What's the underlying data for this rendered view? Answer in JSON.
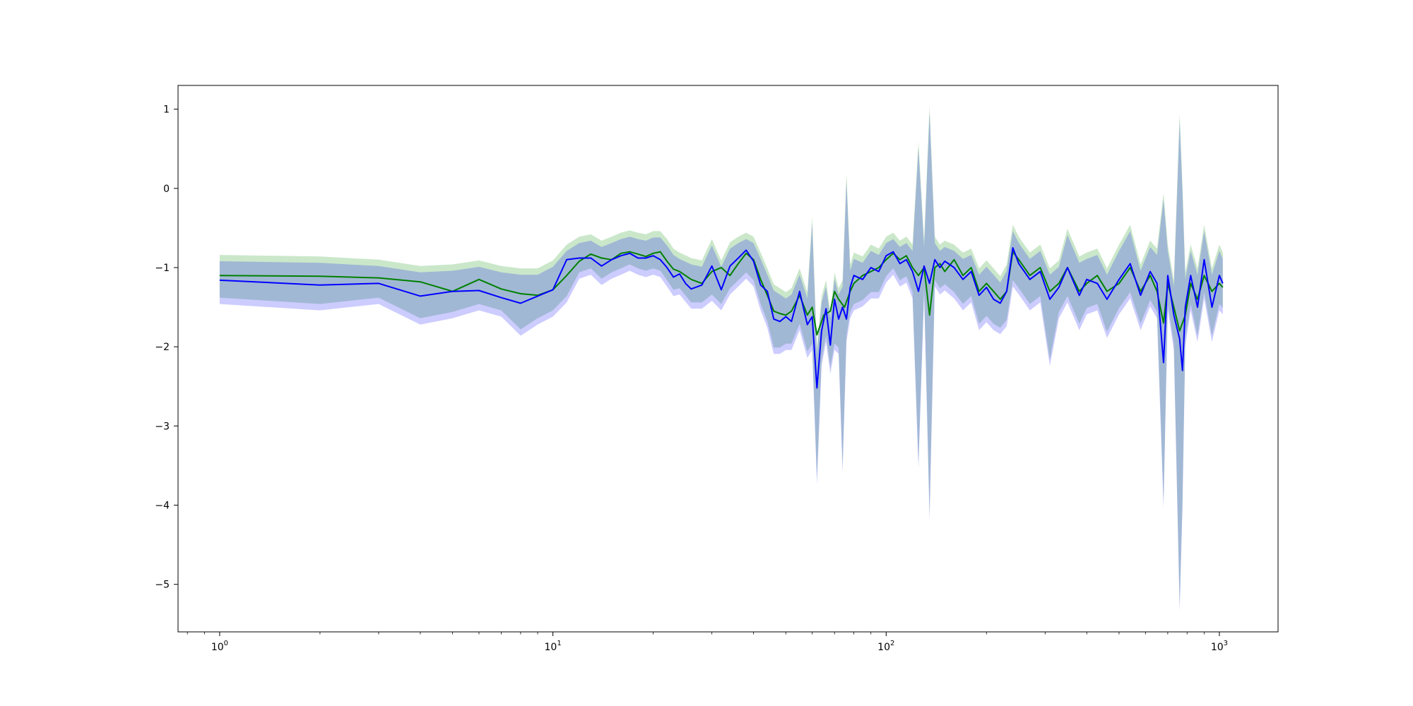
{
  "chart_data": {
    "type": "line",
    "title": "",
    "xlabel": "",
    "ylabel": "",
    "x_scale": "log",
    "xlim": [
      0.75,
      1500
    ],
    "ylim": [
      -5.6,
      1.3
    ],
    "grid": false,
    "legend": "none",
    "x_ticks": [
      {
        "value": 1,
        "label": "10^0"
      },
      {
        "value": 10,
        "label": "10^1"
      },
      {
        "value": 100,
        "label": "10^2"
      },
      {
        "value": 1000,
        "label": "10^3"
      }
    ],
    "y_ticks": [
      1,
      0,
      -1,
      -2,
      -3,
      -4,
      -5
    ],
    "y_tick_labels": [
      "1",
      "0",
      "−1",
      "−2",
      "−3",
      "−4",
      "−5"
    ],
    "series": [
      {
        "color": "#008000",
        "band_color": "#2ca02c",
        "band_opacity": 0.25,
        "points": [
          [
            1,
            -1.1
          ],
          [
            2,
            -1.11
          ],
          [
            3,
            -1.13
          ],
          [
            4,
            -1.18
          ],
          [
            5,
            -1.3
          ],
          [
            6,
            -1.15
          ],
          [
            7,
            -1.27
          ],
          [
            8,
            -1.33
          ],
          [
            9,
            -1.35
          ],
          [
            10,
            -1.28
          ],
          [
            11,
            -1.1
          ],
          [
            12,
            -0.92
          ],
          [
            13,
            -0.83
          ],
          [
            14,
            -0.88
          ],
          [
            15,
            -0.9
          ],
          [
            16,
            -0.82
          ],
          [
            17,
            -0.8
          ],
          [
            18,
            -0.83
          ],
          [
            19,
            -0.86
          ],
          [
            20,
            -0.82
          ],
          [
            21,
            -0.8
          ],
          [
            22,
            -0.92
          ],
          [
            23,
            -1.02
          ],
          [
            24,
            -1.05
          ],
          [
            26,
            -1.15
          ],
          [
            28,
            -1.2
          ],
          [
            30,
            -1.05
          ],
          [
            32,
            -1.0
          ],
          [
            34,
            -1.1
          ],
          [
            36,
            -0.95
          ],
          [
            38,
            -0.82
          ],
          [
            40,
            -0.9
          ],
          [
            42,
            -1.15
          ],
          [
            44,
            -1.35
          ],
          [
            46,
            -1.55
          ],
          [
            48,
            -1.58
          ],
          [
            50,
            -1.6
          ],
          [
            52,
            -1.55
          ],
          [
            55,
            -1.35
          ],
          [
            58,
            -1.6
          ],
          [
            60,
            -1.5
          ],
          [
            62,
            -1.85
          ],
          [
            65,
            -1.6
          ],
          [
            68,
            -1.55
          ],
          [
            70,
            -1.3
          ],
          [
            72,
            -1.4
          ],
          [
            75,
            -1.5
          ],
          [
            78,
            -1.3
          ],
          [
            80,
            -1.2
          ],
          [
            85,
            -1.1
          ],
          [
            90,
            -1.05
          ],
          [
            95,
            -1.0
          ],
          [
            100,
            -0.9
          ],
          [
            105,
            -0.82
          ],
          [
            110,
            -0.9
          ],
          [
            115,
            -0.85
          ],
          [
            120,
            -1.0
          ],
          [
            125,
            -1.1
          ],
          [
            130,
            -1.0
          ],
          [
            135,
            -1.6
          ],
          [
            140,
            -1.0
          ],
          [
            145,
            -0.95
          ],
          [
            150,
            -1.05
          ],
          [
            160,
            -0.9
          ],
          [
            170,
            -1.1
          ],
          [
            180,
            -1.0
          ],
          [
            190,
            -1.3
          ],
          [
            200,
            -1.2
          ],
          [
            210,
            -1.3
          ],
          [
            220,
            -1.4
          ],
          [
            230,
            -1.3
          ],
          [
            240,
            -0.8
          ],
          [
            250,
            -0.9
          ],
          [
            270,
            -1.1
          ],
          [
            290,
            -1.0
          ],
          [
            310,
            -1.3
          ],
          [
            330,
            -1.2
          ],
          [
            350,
            -1.0
          ],
          [
            380,
            -1.3
          ],
          [
            400,
            -1.2
          ],
          [
            430,
            -1.1
          ],
          [
            460,
            -1.3
          ],
          [
            500,
            -1.2
          ],
          [
            540,
            -1.0
          ],
          [
            580,
            -1.3
          ],
          [
            620,
            -1.1
          ],
          [
            650,
            -1.3
          ],
          [
            680,
            -1.7
          ],
          [
            700,
            -1.2
          ],
          [
            730,
            -1.5
          ],
          [
            760,
            -1.8
          ],
          [
            790,
            -1.6
          ],
          [
            820,
            -1.2
          ],
          [
            860,
            -1.4
          ],
          [
            900,
            -1.1
          ],
          [
            950,
            -1.3
          ],
          [
            1000,
            -1.2
          ],
          [
            1024,
            -1.25
          ]
        ]
      },
      {
        "color": "#0000ff",
        "band_color": "#0000ff",
        "band_opacity": 0.2,
        "points": [
          [
            1,
            -1.16
          ],
          [
            2,
            -1.22
          ],
          [
            3,
            -1.2
          ],
          [
            4,
            -1.36
          ],
          [
            5,
            -1.3
          ],
          [
            6,
            -1.29
          ],
          [
            7,
            -1.38
          ],
          [
            8,
            -1.45
          ],
          [
            9,
            -1.36
          ],
          [
            10,
            -1.28
          ],
          [
            11,
            -0.9
          ],
          [
            12,
            -0.88
          ],
          [
            13,
            -0.88
          ],
          [
            14,
            -0.98
          ],
          [
            15,
            -0.9
          ],
          [
            16,
            -0.85
          ],
          [
            17,
            -0.82
          ],
          [
            18,
            -0.88
          ],
          [
            19,
            -0.88
          ],
          [
            20,
            -0.85
          ],
          [
            21,
            -0.9
          ],
          [
            22,
            -1.0
          ],
          [
            23,
            -1.12
          ],
          [
            24,
            -1.08
          ],
          [
            25,
            -1.2
          ],
          [
            26,
            -1.27
          ],
          [
            28,
            -1.22
          ],
          [
            30,
            -0.98
          ],
          [
            32,
            -1.28
          ],
          [
            34,
            -0.98
          ],
          [
            36,
            -0.88
          ],
          [
            38,
            -0.78
          ],
          [
            40,
            -0.92
          ],
          [
            42,
            -1.22
          ],
          [
            44,
            -1.3
          ],
          [
            46,
            -1.65
          ],
          [
            48,
            -1.68
          ],
          [
            50,
            -1.62
          ],
          [
            52,
            -1.68
          ],
          [
            55,
            -1.3
          ],
          [
            58,
            -1.72
          ],
          [
            60,
            -1.62
          ],
          [
            62,
            -2.52
          ],
          [
            64,
            -1.8
          ],
          [
            66,
            -1.52
          ],
          [
            68,
            -1.98
          ],
          [
            70,
            -1.4
          ],
          [
            72,
            -1.65
          ],
          [
            74,
            -1.5
          ],
          [
            76,
            -1.65
          ],
          [
            78,
            -1.25
          ],
          [
            80,
            -1.1
          ],
          [
            85,
            -1.15
          ],
          [
            90,
            -1.0
          ],
          [
            95,
            -1.05
          ],
          [
            100,
            -0.85
          ],
          [
            105,
            -0.8
          ],
          [
            110,
            -0.95
          ],
          [
            115,
            -0.9
          ],
          [
            120,
            -1.05
          ],
          [
            125,
            -1.3
          ],
          [
            130,
            -0.98
          ],
          [
            135,
            -1.2
          ],
          [
            140,
            -0.9
          ],
          [
            145,
            -1.0
          ],
          [
            150,
            -0.92
          ],
          [
            160,
            -1.0
          ],
          [
            170,
            -1.15
          ],
          [
            180,
            -1.05
          ],
          [
            190,
            -1.35
          ],
          [
            200,
            -1.25
          ],
          [
            210,
            -1.4
          ],
          [
            220,
            -1.45
          ],
          [
            230,
            -1.3
          ],
          [
            240,
            -0.75
          ],
          [
            250,
            -0.95
          ],
          [
            270,
            -1.15
          ],
          [
            290,
            -1.05
          ],
          [
            310,
            -1.4
          ],
          [
            330,
            -1.25
          ],
          [
            350,
            -1.0
          ],
          [
            380,
            -1.35
          ],
          [
            400,
            -1.15
          ],
          [
            430,
            -1.2
          ],
          [
            460,
            -1.4
          ],
          [
            500,
            -1.15
          ],
          [
            540,
            -0.95
          ],
          [
            580,
            -1.35
          ],
          [
            620,
            -1.05
          ],
          [
            650,
            -1.2
          ],
          [
            680,
            -2.2
          ],
          [
            700,
            -1.1
          ],
          [
            730,
            -1.6
          ],
          [
            760,
            -1.9
          ],
          [
            775,
            -2.3
          ],
          [
            790,
            -1.5
          ],
          [
            820,
            -1.1
          ],
          [
            860,
            -1.5
          ],
          [
            900,
            -0.9
          ],
          [
            950,
            -1.5
          ],
          [
            1000,
            -1.1
          ],
          [
            1024,
            -1.2
          ]
        ]
      }
    ],
    "band_points": [
      [
        1,
        -0.88,
        -1.42
      ],
      [
        2,
        -0.9,
        -1.5
      ],
      [
        3,
        -0.94,
        -1.42
      ],
      [
        4,
        -1.02,
        -1.68
      ],
      [
        5,
        -1.0,
        -1.6
      ],
      [
        6,
        -0.95,
        -1.5
      ],
      [
        7,
        -1.02,
        -1.58
      ],
      [
        8,
        -1.05,
        -1.82
      ],
      [
        9,
        -1.05,
        -1.68
      ],
      [
        10,
        -0.95,
        -1.58
      ],
      [
        11,
        -0.75,
        -1.4
      ],
      [
        12,
        -0.65,
        -1.1
      ],
      [
        13,
        -0.62,
        -1.05
      ],
      [
        14,
        -0.7,
        -1.18
      ],
      [
        15,
        -0.65,
        -1.1
      ],
      [
        16,
        -0.6,
        -1.05
      ],
      [
        17,
        -0.57,
        -1.0
      ],
      [
        18,
        -0.6,
        -1.05
      ],
      [
        19,
        -0.62,
        -1.08
      ],
      [
        20,
        -0.58,
        -1.05
      ],
      [
        21,
        -0.58,
        -1.08
      ],
      [
        22,
        -0.68,
        -1.2
      ],
      [
        23,
        -0.8,
        -1.32
      ],
      [
        24,
        -0.85,
        -1.3
      ],
      [
        26,
        -0.92,
        -1.48
      ],
      [
        28,
        -0.95,
        -1.48
      ],
      [
        30,
        -0.68,
        -1.38
      ],
      [
        32,
        -0.95,
        -1.5
      ],
      [
        34,
        -0.72,
        -1.3
      ],
      [
        36,
        -0.65,
        -1.2
      ],
      [
        38,
        -0.6,
        -1.1
      ],
      [
        40,
        -0.65,
        -1.2
      ],
      [
        42,
        -0.85,
        -1.5
      ],
      [
        44,
        -1.05,
        -1.72
      ],
      [
        46,
        -1.25,
        -2.05
      ],
      [
        48,
        -1.3,
        -2.05
      ],
      [
        50,
        -1.35,
        -2.0
      ],
      [
        52,
        -1.3,
        -2.0
      ],
      [
        55,
        -1.05,
        -1.75
      ],
      [
        58,
        -1.35,
        -2.1
      ],
      [
        60,
        -0.4,
        -2.0
      ],
      [
        62,
        -2.05,
        -3.7
      ],
      [
        64,
        -1.4,
        -2.2
      ],
      [
        66,
        -1.2,
        -1.9
      ],
      [
        68,
        -1.6,
        -2.3
      ],
      [
        70,
        -1.1,
        -2.0
      ],
      [
        72,
        -1.3,
        -2.05
      ],
      [
        74,
        -1.2,
        -3.55
      ],
      [
        76,
        0.15,
        -1.9
      ],
      [
        78,
        -1.0,
        -1.6
      ],
      [
        80,
        -0.85,
        -1.5
      ],
      [
        85,
        -0.9,
        -1.45
      ],
      [
        90,
        -0.75,
        -1.35
      ],
      [
        95,
        -0.8,
        -1.35
      ],
      [
        100,
        -0.65,
        -1.15
      ],
      [
        105,
        -0.6,
        -1.05
      ],
      [
        110,
        -0.7,
        -1.2
      ],
      [
        115,
        -0.65,
        -1.15
      ],
      [
        120,
        -0.75,
        -1.35
      ],
      [
        125,
        0.55,
        -3.5
      ],
      [
        130,
        -0.7,
        -1.3
      ],
      [
        135,
        1.0,
        -4.15
      ],
      [
        140,
        -0.65,
        -1.2
      ],
      [
        145,
        -0.75,
        -1.3
      ],
      [
        150,
        -0.7,
        -1.25
      ],
      [
        160,
        -0.75,
        -1.35
      ],
      [
        170,
        -0.85,
        -1.5
      ],
      [
        180,
        -0.8,
        -1.4
      ],
      [
        190,
        -1.05,
        -1.75
      ],
      [
        200,
        -0.95,
        -1.65
      ],
      [
        210,
        -1.05,
        -1.75
      ],
      [
        220,
        -1.15,
        -1.8
      ],
      [
        230,
        -1.0,
        -1.7
      ],
      [
        240,
        -0.5,
        -1.2
      ],
      [
        250,
        -0.65,
        -1.3
      ],
      [
        270,
        -0.85,
        -1.5
      ],
      [
        290,
        -0.75,
        -1.4
      ],
      [
        310,
        -1.05,
        -2.2
      ],
      [
        330,
        -0.95,
        -1.6
      ],
      [
        350,
        -0.55,
        -1.4
      ],
      [
        380,
        -0.9,
        -1.75
      ],
      [
        400,
        -0.85,
        -1.55
      ],
      [
        430,
        -0.8,
        -1.5
      ],
      [
        460,
        -1.05,
        -1.85
      ],
      [
        500,
        -0.75,
        -1.55
      ],
      [
        540,
        -0.5,
        -1.35
      ],
      [
        580,
        -1.0,
        -1.75
      ],
      [
        620,
        -0.7,
        -1.45
      ],
      [
        650,
        -0.8,
        -1.6
      ],
      [
        680,
        -0.1,
        -4.0
      ],
      [
        700,
        -0.75,
        -1.5
      ],
      [
        730,
        -1.2,
        -2.0
      ],
      [
        760,
        0.9,
        -5.3
      ],
      [
        775,
        0.0,
        -4.0
      ],
      [
        790,
        -1.1,
        -1.95
      ],
      [
        820,
        -0.75,
        -1.5
      ],
      [
        860,
        -1.05,
        -1.9
      ],
      [
        900,
        -0.5,
        -1.35
      ],
      [
        950,
        -1.05,
        -1.9
      ],
      [
        1000,
        -0.75,
        -1.5
      ],
      [
        1024,
        -0.85,
        -1.55
      ]
    ]
  }
}
